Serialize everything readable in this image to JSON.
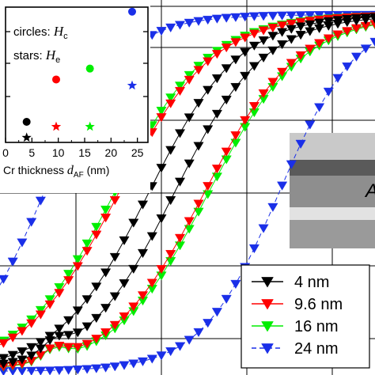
{
  "chart_data": [
    {
      "type": "line",
      "title": "",
      "xlabel": "",
      "ylabel": "",
      "xlim": [
        -1,
        1
      ],
      "ylim": [
        -1,
        1
      ],
      "grid": true,
      "legend_position": "bottom-right",
      "series": [
        {
          "name": "4 nm",
          "color": "#000000",
          "marker": "triangle-down",
          "Hc": 0.06,
          "He": 0.0
        },
        {
          "name": "9.6 nm",
          "color": "#ff0000",
          "marker": "triangle-down",
          "Hc": 0.2,
          "He": 0.0
        },
        {
          "name": "16 nm",
          "color": "#00ee00",
          "marker": "triangle-down",
          "Hc": 0.22,
          "He": 0.0
        },
        {
          "name": "24 nm",
          "color": "#1a2fe8",
          "marker": "triangle-down",
          "Hc": 0.55,
          "He": 0.0
        }
      ]
    },
    {
      "type": "scatter",
      "inset": true,
      "xlabel_prefix": "Cr  thickness ",
      "xlabel_var": "d",
      "xlabel_sub": "AF",
      "xlabel_unit": " (nm)",
      "xlim": [
        0,
        27
      ],
      "xticks": [
        "0",
        "5",
        "10",
        "15",
        "20",
        "25"
      ],
      "xtick_values": [
        0,
        5,
        10,
        15,
        20,
        25
      ],
      "ylim": [
        0,
        1
      ],
      "legend_entries": [
        {
          "prefix": "circles:",
          "var": "H",
          "sub": "c",
          "marker": "circle"
        },
        {
          "prefix": "stars:",
          "var": "H",
          "sub": "e",
          "marker": "star"
        }
      ],
      "circles": [
        {
          "x": 4,
          "y": 0.17,
          "color": "#000000"
        },
        {
          "x": 9.6,
          "y": 0.52,
          "color": "#ff0000"
        },
        {
          "x": 16,
          "y": 0.61,
          "color": "#00ee00"
        },
        {
          "x": 24,
          "y": 1.08,
          "color": "#1a2fe8"
        }
      ],
      "stars": [
        {
          "x": 4,
          "y": 0.04,
          "color": "#000000"
        },
        {
          "x": 9.6,
          "y": 0.13,
          "color": "#ff0000"
        },
        {
          "x": 16,
          "y": 0.13,
          "color": "#00ee00"
        },
        {
          "x": 24,
          "y": 0.47,
          "color": "#1a2fe8"
        }
      ]
    }
  ],
  "layer_label": "A"
}
